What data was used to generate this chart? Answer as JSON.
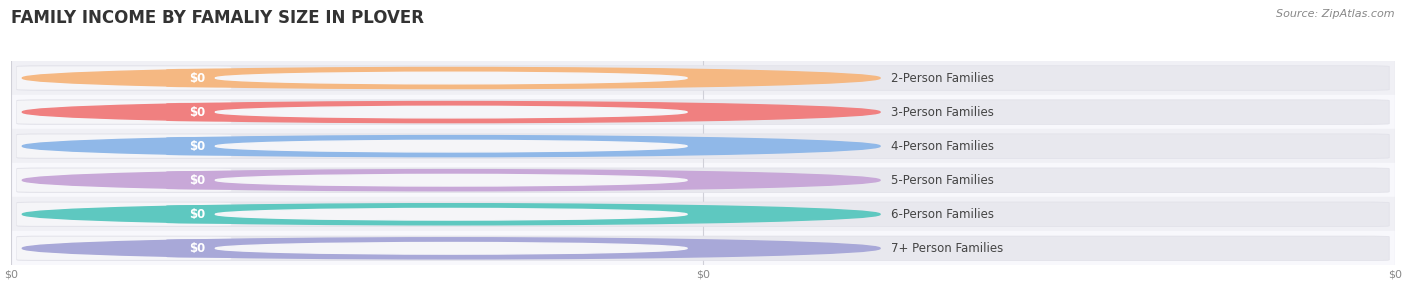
{
  "title": "FAMILY INCOME BY FAMALIY SIZE IN PLOVER",
  "source": "Source: ZipAtlas.com",
  "categories": [
    "2-Person Families",
    "3-Person Families",
    "4-Person Families",
    "5-Person Families",
    "6-Person Families",
    "7+ Person Families"
  ],
  "values": [
    0,
    0,
    0,
    0,
    0,
    0
  ],
  "bar_colors": [
    "#f5b882",
    "#f08080",
    "#90b8e8",
    "#c8a8d8",
    "#5ec8c0",
    "#a8a8d8"
  ],
  "background_color": "#ffffff",
  "row_bg_even": "#f0f0f5",
  "row_bg_odd": "#f8f8fc",
  "title_fontsize": 12,
  "label_fontsize": 8.5,
  "value_fontsize": 8.5,
  "source_fontsize": 8,
  "figsize": [
    14.06,
    3.05
  ],
  "dpi": 100,
  "xtick_labels": [
    "$0",
    "$0",
    "$0"
  ],
  "xtick_positions": [
    0.0,
    0.5,
    1.0
  ]
}
